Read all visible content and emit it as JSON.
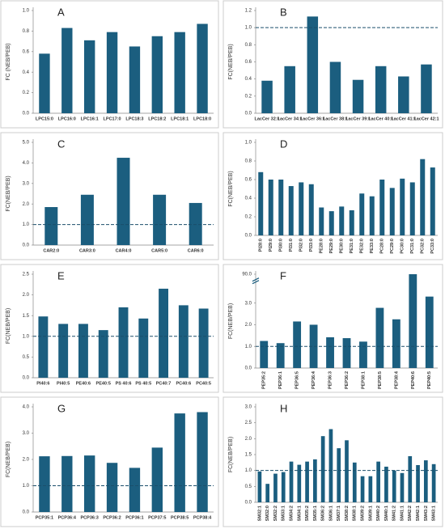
{
  "chart_data": [
    {
      "type": "bar",
      "title": "A",
      "y_label": "FC (NEB/PEB)",
      "color": "#1b5e7f",
      "categories": [
        "LPC15:0",
        "LPC16:0",
        "LPC16:1",
        "LPC17:0",
        "LPC18:3",
        "LPC18:2",
        "LPC18:1",
        "LPC18:0"
      ],
      "values": [
        0.58,
        0.83,
        0.71,
        0.79,
        0.65,
        0.75,
        0.79,
        0.87
      ],
      "ylim": [
        0,
        1.0
      ],
      "yticks": [
        {
          "value": 0,
          "label": "0.0"
        },
        0.2,
        0.4,
        0.6,
        0.8,
        {
          "value": 1,
          "label": "1.0"
        }
      ]
    },
    {
      "type": "bar",
      "title": "B",
      "y_label": "FC(NEB/PEB)",
      "color": "#1b5e7f",
      "categories": [
        "LacCer 32:1",
        "LacCer 34:1",
        "LacCer 36:1",
        "LacCer 38:1",
        "LacCer 39:1",
        "LacCer 40:1",
        "LacCer 41:1",
        "LacCer 42:1"
      ],
      "values": [
        0.38,
        0.55,
        1.13,
        0.6,
        0.39,
        0.55,
        0.43,
        0.57
      ],
      "reference_line": 1,
      "ylim": [
        0,
        1.2
      ],
      "yticks": [
        {
          "value": 0,
          "label": "0.0"
        },
        0.2,
        0.4,
        0.6,
        0.8,
        {
          "value": 1,
          "label": "1.0"
        },
        1.2
      ]
    },
    {
      "type": "bar",
      "title": "C",
      "y_label": "FC(NEB/PEB)",
      "color": "#1b5e7f",
      "categories": [
        "CAR2:0",
        "CAR3:0",
        "CAR4:0",
        "CAR5:0",
        "CAR6:0"
      ],
      "values": [
        1.85,
        2.45,
        4.25,
        2.45,
        2.05
      ],
      "reference_line": 1,
      "ylim": [
        0,
        5
      ],
      "yticks": [
        {
          "value": 0,
          "label": "0.0"
        },
        {
          "value": 1,
          "label": "1.0"
        },
        {
          "value": 2,
          "label": "2.0"
        },
        {
          "value": 3,
          "label": "3.0"
        },
        {
          "value": 4,
          "label": "4.0"
        },
        {
          "value": 5,
          "label": "5.0"
        }
      ]
    },
    {
      "type": "bar",
      "title": "D",
      "y_label": "FC(NEB/PEB)",
      "color": "#1b5e7f",
      "rotate_labels": true,
      "categories": [
        "PI28:0",
        "PI29:0",
        "PI30:0",
        "PI31:0",
        "PI32:0",
        "PI33:0",
        "PE28:0",
        "PE29:0",
        "PE30:0",
        "PE31:0",
        "PE32:0",
        "PE33:0",
        "PC28:0",
        "PC29:0",
        "PC30:0",
        "PC31:0",
        "PC32:0",
        "PC33:0"
      ],
      "values": [
        0.68,
        0.6,
        0.6,
        0.53,
        0.57,
        0.55,
        0.3,
        0.26,
        0.31,
        0.27,
        0.45,
        0.42,
        0.6,
        0.51,
        0.61,
        0.57,
        0.82,
        0.73
      ],
      "ylim": [
        0,
        1.0
      ],
      "yticks": [
        {
          "value": 0,
          "label": "0.0"
        },
        0.2,
        0.4,
        0.6,
        0.8,
        {
          "value": 1,
          "label": "1.0"
        }
      ]
    },
    {
      "type": "bar",
      "title": "E",
      "y_label": "FC(NEB/PEB)",
      "color": "#1b5e7f",
      "categories": [
        "PI40:6",
        "PI40:5",
        "PE40:6",
        "PE40:5",
        "PS 40:6",
        "PS 40:5",
        "PC40:7",
        "PC40:6",
        "PC40:5"
      ],
      "values": [
        1.48,
        1.3,
        1.3,
        1.15,
        1.7,
        1.43,
        2.15,
        1.75,
        1.67
      ],
      "reference_line": 1,
      "ylim": [
        0,
        2.5
      ],
      "yticks": [
        {
          "value": 0,
          "label": "0.0"
        },
        0.5,
        {
          "value": 1,
          "label": "1.0"
        },
        1.5,
        {
          "value": 2,
          "label": "2.0"
        },
        2.5
      ]
    },
    {
      "type": "bar",
      "title": "F",
      "y_label": "FC(NEB/PEB)",
      "color": "#1b5e7f",
      "rotate_labels": true,
      "categories": [
        "PEP35:2",
        "PEP36:1",
        "PEP36:5",
        "PEP36:4",
        "PEP36:3",
        "PEP36:2",
        "PEP38:1",
        "PEP38:5",
        "PEP38:4",
        "PEP40:6",
        "PEP40:5"
      ],
      "values": [
        1.25,
        1.15,
        2.15,
        2.0,
        1.42,
        1.38,
        1.22,
        2.78,
        2.25,
        90,
        3.3
      ],
      "reference_line": 1,
      "ylim": [
        0,
        90
      ],
      "ybreak": [
        3.9,
        89.5
      ],
      "yticks": [
        {
          "value": 0,
          "label": "0.0"
        },
        {
          "value": 1,
          "label": "1.0"
        },
        {
          "value": 2,
          "label": "2.0"
        },
        {
          "value": 3,
          "label": "3.0"
        },
        {
          "value": 90,
          "label": "90.0"
        }
      ]
    },
    {
      "type": "bar",
      "title": "G",
      "y_label": "FC(NEB/PEB)",
      "color": "#1b5e7f",
      "categories": [
        "PCP35:1",
        "PCP36:4",
        "PCP36:3",
        "PCP36:2",
        "PCP36:1",
        "PCP37:5",
        "PCP38:5",
        "PCP38:4"
      ],
      "values": [
        2.12,
        2.13,
        2.15,
        1.87,
        1.68,
        2.45,
        3.75,
        3.8
      ],
      "reference_line": 1,
      "ylim": [
        0,
        4
      ],
      "yticks": [
        {
          "value": 0,
          "label": "0.0"
        },
        {
          "value": 1,
          "label": "1.0"
        },
        {
          "value": 2,
          "label": "2.0"
        },
        {
          "value": 3,
          "label": "3.0"
        },
        {
          "value": 4,
          "label": "4.0"
        }
      ]
    },
    {
      "type": "bar",
      "title": "H",
      "y_label": "FC(NEB/PEB)",
      "color": "#1b5e7f",
      "rotate_labels": true,
      "categories": [
        "SM32:1",
        "SM32:0",
        "SM32:2",
        "SM33:1",
        "SM34:2",
        "SM34:1",
        "SM35:2",
        "SM35:1",
        "SM36:2",
        "SM36:1",
        "SM37:1",
        "SM38:2",
        "SM38:1",
        "SM39:2",
        "SM39:1",
        "SM40:2",
        "SM40:1",
        "SM41:2",
        "SM41:1",
        "SM42:2",
        "SM42:1",
        "SM43:2",
        "SM43:1"
      ],
      "values": [
        0.97,
        0.58,
        0.9,
        0.95,
        1.28,
        1.18,
        1.28,
        1.35,
        2.08,
        2.3,
        1.7,
        1.95,
        1.25,
        0.82,
        0.82,
        1.28,
        1.12,
        1.0,
        0.92,
        1.45,
        1.17,
        1.32,
        1.2
      ],
      "reference_line": 1,
      "ylim": [
        0,
        3
      ],
      "yticks": [
        {
          "value": 0,
          "label": "0.0"
        },
        0.5,
        {
          "value": 1,
          "label": "1.0"
        },
        1.5,
        {
          "value": 2,
          "label": "2.0"
        },
        2.5,
        {
          "value": 3,
          "label": "3.0"
        }
      ]
    }
  ]
}
